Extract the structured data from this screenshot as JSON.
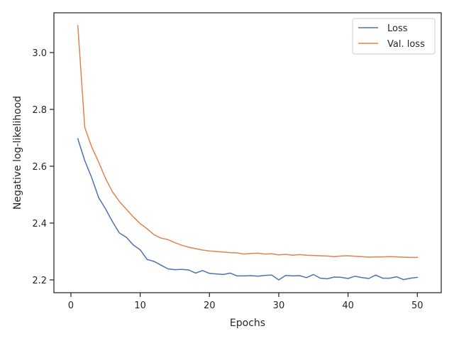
{
  "chart_data": {
    "type": "line",
    "title": "",
    "xlabel": "Epochs",
    "ylabel": "Negative log-likelihood",
    "xlim": [
      -2.45,
      53.45
    ],
    "ylim": [
      2.155,
      3.14
    ],
    "xticks": [
      0,
      10,
      20,
      30,
      40,
      50
    ],
    "yticks": [
      2.2,
      2.4,
      2.6,
      2.8,
      3.0
    ],
    "xtick_labels": [
      "0",
      "10",
      "20",
      "30",
      "40",
      "50"
    ],
    "ytick_labels": [
      "2.2",
      "2.4",
      "2.6",
      "2.8",
      "3.0"
    ],
    "grid": false,
    "legend": "top-right",
    "x": [
      1,
      2,
      3,
      4,
      5,
      6,
      7,
      8,
      9,
      10,
      11,
      12,
      13,
      14,
      15,
      16,
      17,
      18,
      19,
      20,
      21,
      22,
      23,
      24,
      25,
      26,
      27,
      28,
      29,
      30,
      31,
      32,
      33,
      34,
      35,
      36,
      37,
      38,
      39,
      40,
      41,
      42,
      43,
      44,
      45,
      46,
      47,
      48,
      49,
      50
    ],
    "series": [
      {
        "name": "Loss",
        "color": "#4c72b0",
        "values": [
          2.697,
          2.62,
          2.56,
          2.49,
          2.45,
          2.405,
          2.365,
          2.35,
          2.323,
          2.306,
          2.272,
          2.265,
          2.252,
          2.239,
          2.236,
          2.237,
          2.235,
          2.224,
          2.233,
          2.223,
          2.221,
          2.219,
          2.224,
          2.214,
          2.214,
          2.215,
          2.213,
          2.216,
          2.217,
          2.2,
          2.216,
          2.214,
          2.215,
          2.208,
          2.219,
          2.206,
          2.204,
          2.21,
          2.209,
          2.205,
          2.213,
          2.208,
          2.205,
          2.217,
          2.206,
          2.206,
          2.211,
          2.201,
          2.206,
          2.209
        ]
      },
      {
        "name": "Val. loss",
        "color": "#dd8452",
        "values": [
          3.095,
          2.737,
          2.668,
          2.615,
          2.557,
          2.51,
          2.476,
          2.449,
          2.422,
          2.398,
          2.38,
          2.359,
          2.347,
          2.342,
          2.331,
          2.322,
          2.315,
          2.31,
          2.305,
          2.302,
          2.3,
          2.298,
          2.296,
          2.295,
          2.291,
          2.293,
          2.294,
          2.291,
          2.292,
          2.288,
          2.29,
          2.287,
          2.289,
          2.287,
          2.286,
          2.285,
          2.284,
          2.282,
          2.284,
          2.285,
          2.283,
          2.282,
          2.28,
          2.281,
          2.281,
          2.282,
          2.281,
          2.28,
          2.279,
          2.279
        ]
      }
    ]
  }
}
